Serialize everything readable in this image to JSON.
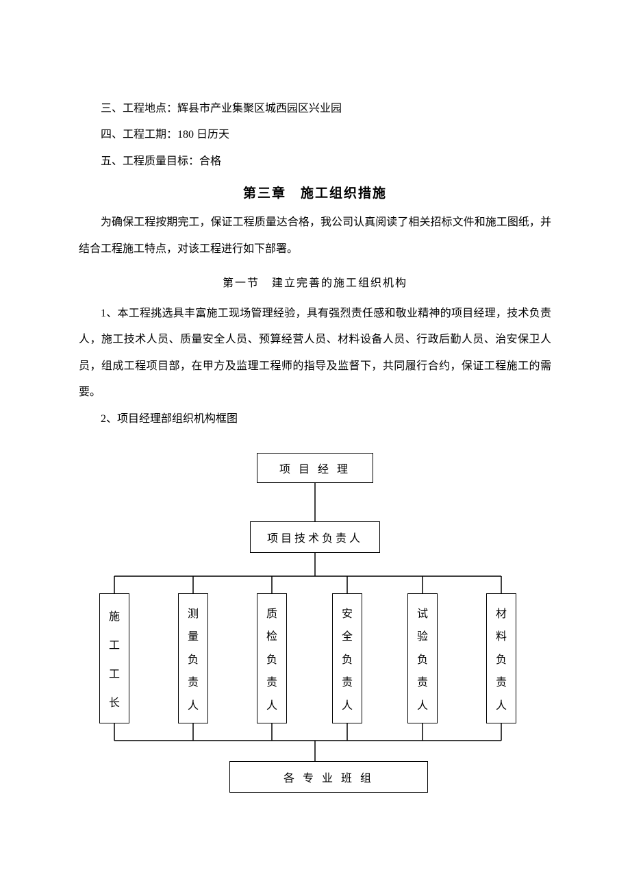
{
  "lines": {
    "l1": "三、工程地点：辉县市产业集聚区城西园区兴业园",
    "l2": "四、工程工期：180 日历天",
    "l3": "五、工程质量目标：合格"
  },
  "chapter_title": "第三章　施工组织措施",
  "para1": "为确保工程按期完工，保证工程质量达合格，我公司认真阅读了相关招标文件和施工图纸，并结合工程施工特点，对该工程进行如下部署。",
  "section_title": "第一节　建立完善的施工组织机构",
  "para2": "1、本工程挑选具丰富施工现场管理经验，具有强烈责任感和敬业精神的项目经理，技术负责人，施工技术人员、质量安全人员、预算经营人员、材料设备人员、行政后勤人员、治安保卫人员，组成工程项目部，在甲方及监理工程师的指导及监督下，共同履行合约，保证工程施工的需要。",
  "para3": "2、项目经理部组织机构框图",
  "org": {
    "top": "项 目 经 理",
    "mid": "项目技术负责人",
    "dept": [
      "施工工长",
      "测量负责人",
      "质检负责人",
      "安全负责人",
      "试验负责人",
      "材料负责人"
    ],
    "bottom": "各 专 业 班 组",
    "dept_x": [
      30,
      145,
      260,
      370,
      480,
      595
    ],
    "colors": {
      "bg": "#ffffff",
      "fg": "#000000",
      "stroke": "#000000"
    },
    "stroke_width": 1.5,
    "fontsize": 16
  }
}
